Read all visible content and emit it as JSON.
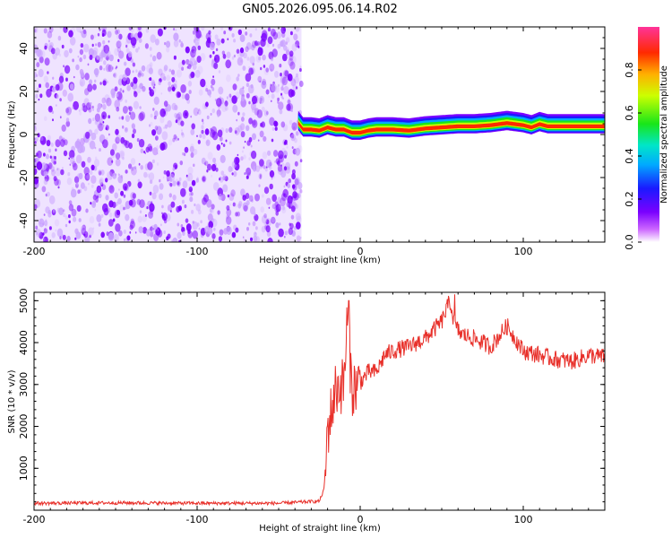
{
  "title": "GN05.2026.095.06.14.R02",
  "chart_data": [
    {
      "type": "heatmap",
      "name": "spectrogram",
      "xlabel": "Height of straight line (km)",
      "ylabel": "Frequency (Hz)",
      "xlim": [
        -200,
        150
      ],
      "ylim": [
        -50,
        50
      ],
      "xticks": [
        -200,
        -100,
        0,
        100
      ],
      "xtick_labels": [
        "-200",
        "-100",
        "0",
        "100"
      ],
      "yticks": [
        -40,
        -20,
        0,
        20,
        40
      ],
      "ytick_labels": [
        "-40",
        "-20",
        "0",
        "20",
        "40"
      ],
      "noise_region_x": [
        -200,
        -36
      ],
      "ridge": {
        "x": [
          -38,
          -35,
          -30,
          -25,
          -20,
          -15,
          -10,
          -5,
          0,
          5,
          10,
          20,
          30,
          40,
          50,
          60,
          70,
          80,
          90,
          100,
          105,
          110,
          115,
          120,
          130,
          140,
          150
        ],
        "y": [
          5,
          2,
          2,
          1.5,
          3,
          2,
          2,
          0.5,
          0.5,
          1.5,
          2,
          2,
          1.5,
          2.5,
          3,
          3.5,
          3.5,
          4,
          5,
          4,
          3,
          4.5,
          3.5,
          3.5,
          3.5,
          3.5,
          3.5
        ]
      },
      "colorbar": {
        "label": "Normalized spectral amplitude",
        "range": [
          0,
          1
        ],
        "ticks": [
          0.0,
          0.2,
          0.4,
          0.6,
          0.8
        ],
        "tick_labels": [
          "0.0",
          "0.2",
          "0.4",
          "0.6",
          "0.8"
        ]
      }
    },
    {
      "type": "line",
      "name": "snr",
      "xlabel": "Height of straight line (km)",
      "ylabel": "SNR (10 * v/v)",
      "xlim": [
        -200,
        150
      ],
      "ylim": [
        0,
        5200
      ],
      "xticks": [
        -200,
        -100,
        0,
        100
      ],
      "xtick_labels": [
        "-200",
        "-100",
        "0",
        "100"
      ],
      "yticks": [
        1000,
        2000,
        3000,
        4000,
        5000
      ],
      "ytick_labels": [
        "1000",
        "2000",
        "3000",
        "4000",
        "5000"
      ],
      "color": "#e8302a",
      "series_envelope": {
        "x": [
          -200,
          -150,
          -100,
          -50,
          -25,
          -22,
          -20,
          -15,
          -10,
          -8,
          -5,
          0,
          5,
          10,
          15,
          20,
          30,
          40,
          50,
          55,
          58,
          62,
          70,
          80,
          90,
          100,
          110,
          120,
          130,
          140,
          150
        ],
        "y": [
          150,
          160,
          150,
          150,
          200,
          500,
          1900,
          2900,
          3000,
          4500,
          2900,
          3050,
          3300,
          3300,
          3700,
          3800,
          3900,
          4100,
          4500,
          5000,
          4400,
          4200,
          4100,
          3900,
          4400,
          3800,
          3700,
          3600,
          3550,
          3700,
          3650
        ]
      }
    }
  ]
}
